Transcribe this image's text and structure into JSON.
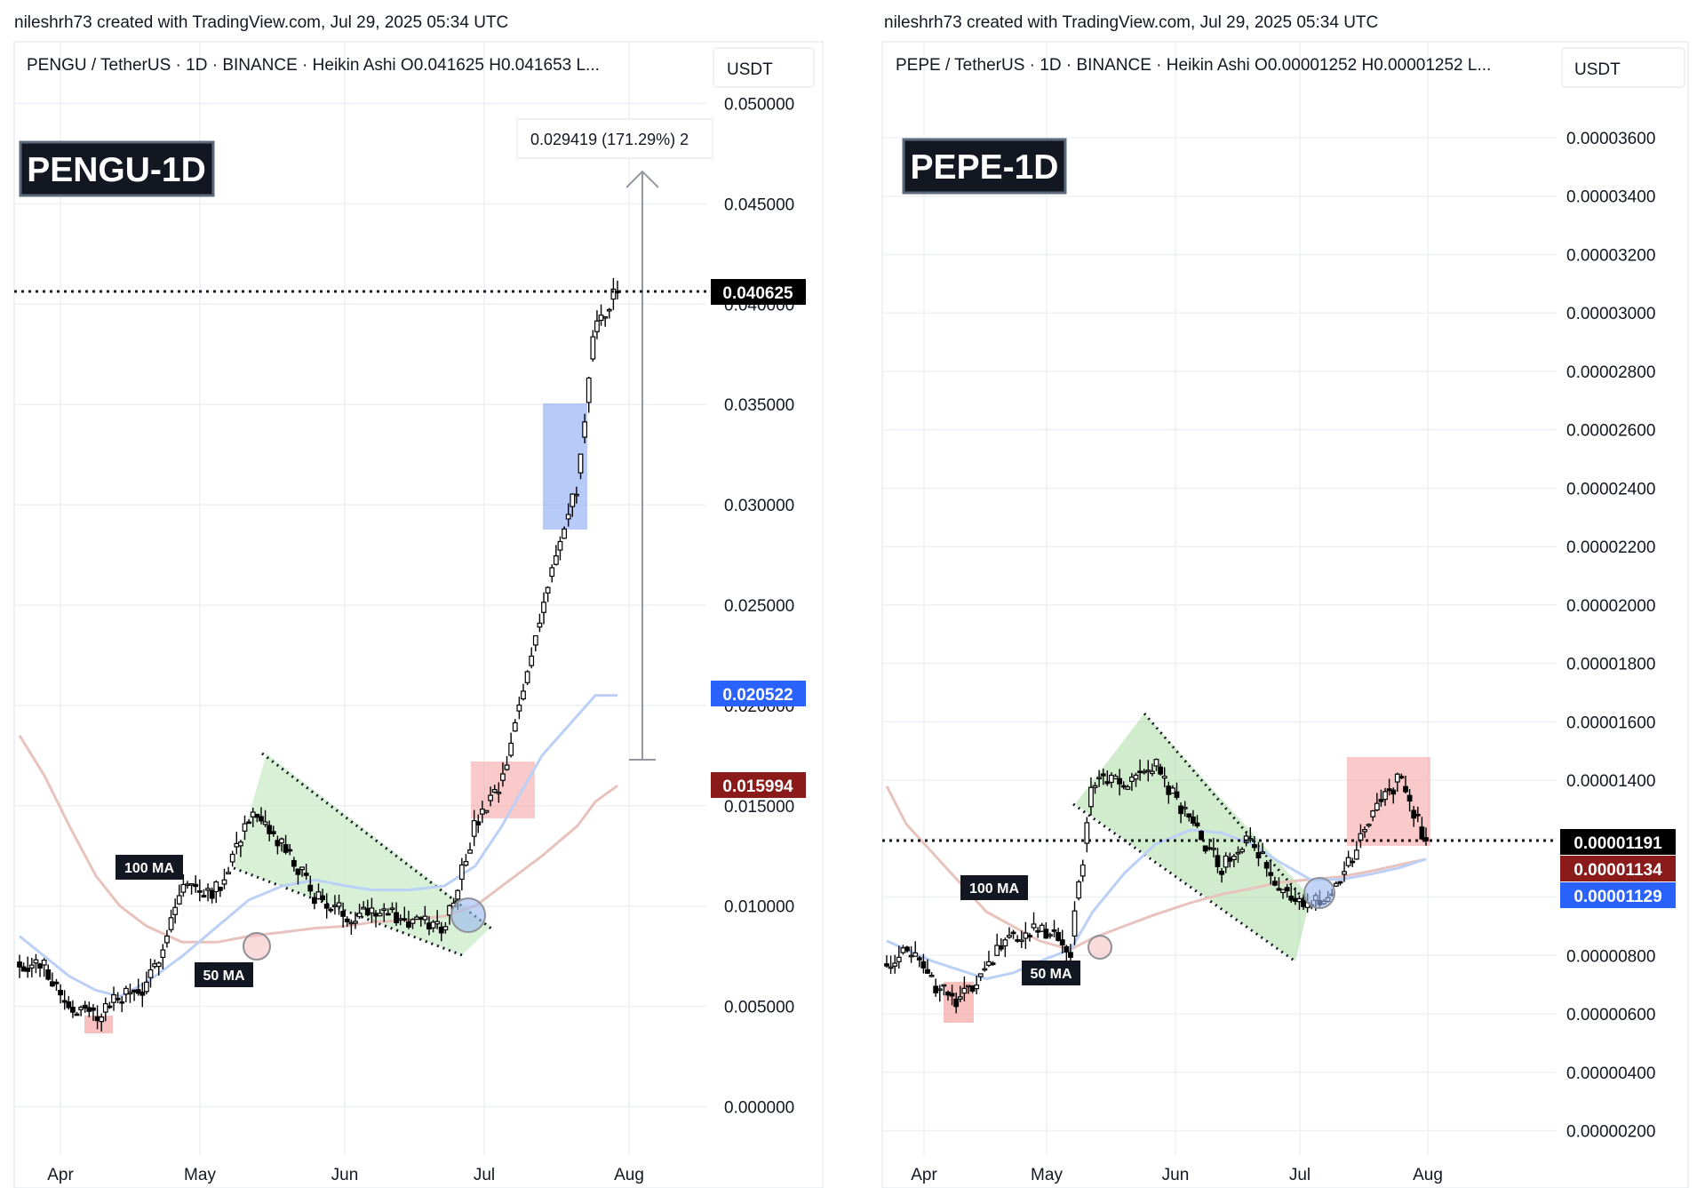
{
  "colors": {
    "grid": "#f0f3fa",
    "candle": "#000000",
    "ma100": "#e8c3be",
    "ma50": "#bcd0f7",
    "wedge_fill": "#c8e9c4",
    "green_zone": "#a9dca2",
    "red_zone": "#f6a5a5",
    "blue_zone": "#7e9ef2",
    "current_tag": "#000000",
    "red_tag": "#8b1a1a",
    "blue_tag": "#2962ff",
    "badge": "#131722"
  },
  "charts": [
    {
      "header": "nileshrh73 created with TradingView.com, Jul 29, 2025 05:34 UTC",
      "symbol_line": "PENGU / TetherUS · 1D · BINANCE · Heikin Ashi   O0.041625   H0.041653   L...",
      "currency_button": "USDT",
      "badge": "PENGU-1D",
      "measurement_label": "0.029419 (171.29%) 2",
      "ma100_label": "100 MA",
      "ma50_label": "50 MA",
      "price_tags": {
        "current": "0.040625",
        "ma100": "0.015994",
        "ma50": "0.020522"
      },
      "chart_data": {
        "type": "candlestick",
        "title": "PENGU / TetherUS · 1D · BINANCE · Heikin Ashi",
        "xlabel": "",
        "ylabel": "USDT",
        "y_ticks": [
          "0.050000",
          "0.045000",
          "0.040000",
          "0.035000",
          "0.030000",
          "0.025000",
          "0.020000",
          "0.015000",
          "0.010000",
          "0.005000",
          "0.000000"
        ],
        "x_ticks": [
          "Apr",
          "May",
          "Jun",
          "Jul",
          "Aug"
        ],
        "ylim": [
          -0.0007,
          0.0513
        ],
        "x": [
          "Mar 21",
          "Mar 28",
          "Apr 4",
          "Apr 11",
          "Apr 18",
          "Apr 25",
          "May 2",
          "May 9",
          "May 16",
          "May 23",
          "May 30",
          "Jun 6",
          "Jun 13",
          "Jun 20",
          "Jun 27",
          "Jul 4",
          "Jul 11",
          "Jul 18",
          "Jul 21",
          "Jul 24",
          "Jul 28"
        ],
        "series": [
          {
            "name": "Heikin Ashi close",
            "values": [
              0.0072,
              0.007,
              0.005,
              0.0045,
              0.0055,
              0.0058,
              0.011,
              0.0108,
              0.0145,
              0.013,
              0.0105,
              0.0095,
              0.01,
              0.0092,
              0.009,
              0.014,
              0.016,
              0.025,
              0.031,
              0.039,
              0.0406
            ]
          },
          {
            "name": "100 MA",
            "values": [
              0.0185,
              0.0165,
              0.014,
              0.0115,
              0.01,
              0.009,
              0.0082,
              0.0082,
              0.0085,
              0.0087,
              0.0089,
              0.009,
              0.0092,
              0.0093,
              0.0095,
              0.01,
              0.011,
              0.0125,
              0.014,
              0.0152,
              0.016
            ]
          },
          {
            "name": "50 MA",
            "values": [
              0.0085,
              0.0075,
              0.0065,
              0.0058,
              0.0055,
              0.0062,
              0.0075,
              0.009,
              0.0103,
              0.011,
              0.0113,
              0.011,
              0.0108,
              0.0108,
              0.011,
              0.012,
              0.014,
              0.0175,
              0.0195,
              0.0205,
              0.0205
            ]
          }
        ],
        "current_price": 0.040625
      }
    },
    {
      "header": "nileshrh73 created with TradingView.com, Jul 29, 2025 05:34 UTC",
      "symbol_line": "PEPE / TetherUS · 1D · BINANCE · Heikin Ashi   O0.00001252   H0.00001252   L...",
      "currency_button": "USDT",
      "badge": "PEPE-1D",
      "ma100_label": "100 MA",
      "ma50_label": "50 MA",
      "price_tags": {
        "current": "0.00001191",
        "ma100": "0.00001134",
        "ma50": "0.00001129"
      },
      "chart_data": {
        "type": "candlestick",
        "title": "PEPE / TetherUS · 1D · BINANCE · Heikin Ashi",
        "xlabel": "",
        "ylabel": "USDT",
        "y_ticks": [
          "0.00003600",
          "0.00003400",
          "0.00003200",
          "0.00003000",
          "0.00002800",
          "0.00002600",
          "0.00002400",
          "0.00002200",
          "0.00002000",
          "0.00001800",
          "0.00001600",
          "0.00001400",
          "0.00001200",
          "0.00001000",
          "0.00000800",
          "0.00000600",
          "0.00000400",
          "0.00000200"
        ],
        "x_ticks": [
          "Apr",
          "May",
          "Jun",
          "Jul",
          "Aug"
        ],
        "ylim": [
          1.7e-06,
          3.82e-05
        ],
        "x": [
          "Mar 21",
          "Mar 28",
          "Apr 4",
          "Apr 11",
          "Apr 18",
          "Apr 25",
          "May 2",
          "May 9",
          "May 16",
          "May 23",
          "May 30",
          "Jun 6",
          "Jun 13",
          "Jun 20",
          "Jun 27",
          "Jul 4",
          "Jul 11",
          "Jul 18",
          "Jul 22",
          "Jul 28"
        ],
        "series": [
          {
            "name": "Heikin Ashi close",
            "values": [
              7.8e-06,
              8.2e-06,
              7e-06,
              6.3e-06,
              7.8e-06,
              8.5e-06,
              9e-06,
              8.2e-06,
              1.4e-05,
              1.38e-05,
              1.45e-05,
              1.25e-05,
              1.1e-05,
              1.2e-05,
              1e-05,
              9.8e-06,
              1.05e-05,
              1.3e-05,
              1.4e-05,
              1.19e-05
            ]
          },
          {
            "name": "100 MA",
            "values": [
              1.38e-05,
              1.25e-05,
              1.15e-05,
              1.05e-05,
              9.5e-06,
              9e-06,
              8.5e-06,
              8.2e-06,
              8.6e-06,
              9e-06,
              9.4e-06,
              9.8e-06,
              1.01e-05,
              1.03e-05,
              1.05e-05,
              1.06e-05,
              1.07e-05,
              1.09e-05,
              1.11e-05,
              1.13e-05
            ]
          },
          {
            "name": "50 MA",
            "values": [
              8.5e-06,
              8.2e-06,
              7.8e-06,
              7.5e-06,
              7.2e-06,
              7.4e-06,
              7.8e-06,
              8.2e-06,
              9.5e-06,
              1.08e-05,
              1.18e-05,
              1.23e-05,
              1.22e-05,
              1.18e-05,
              1.12e-05,
              1.06e-05,
              1.06e-05,
              1.08e-05,
              1.1e-05,
              1.13e-05
            ]
          }
        ],
        "current_price": 1.191e-05
      }
    }
  ]
}
